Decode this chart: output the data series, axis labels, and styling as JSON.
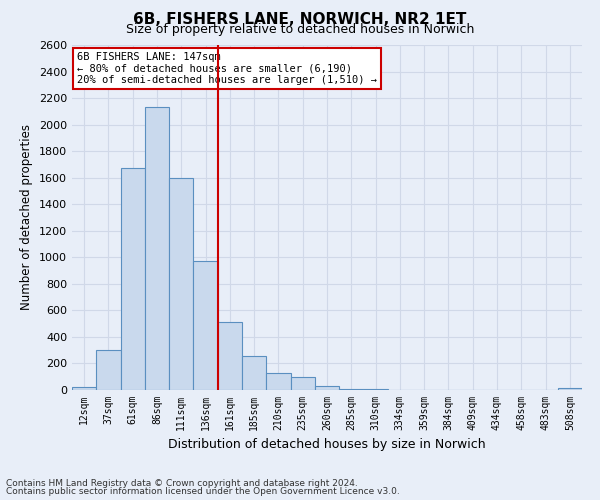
{
  "title": "6B, FISHERS LANE, NORWICH, NR2 1ET",
  "subtitle": "Size of property relative to detached houses in Norwich",
  "xlabel": "Distribution of detached houses by size in Norwich",
  "ylabel": "Number of detached properties",
  "bin_labels": [
    "12sqm",
    "37sqm",
    "61sqm",
    "86sqm",
    "111sqm",
    "136sqm",
    "161sqm",
    "185sqm",
    "210sqm",
    "235sqm",
    "260sqm",
    "285sqm",
    "310sqm",
    "334sqm",
    "359sqm",
    "384sqm",
    "409sqm",
    "434sqm",
    "458sqm",
    "483sqm",
    "508sqm"
  ],
  "bar_heights": [
    20,
    300,
    1670,
    2130,
    1600,
    970,
    510,
    255,
    125,
    95,
    30,
    10,
    5,
    3,
    2,
    2,
    1,
    1,
    1,
    1,
    15
  ],
  "bar_color": "#c9d9ed",
  "bar_edge_color": "#5a8fc0",
  "vline_x": 5.5,
  "vline_color": "#cc0000",
  "annotation_title": "6B FISHERS LANE: 147sqm",
  "annotation_line1": "← 80% of detached houses are smaller (6,190)",
  "annotation_line2": "20% of semi-detached houses are larger (1,510) →",
  "annotation_box_color": "#ffffff",
  "annotation_box_edge_color": "#cc0000",
  "ylim": [
    0,
    2600
  ],
  "yticks": [
    0,
    200,
    400,
    600,
    800,
    1000,
    1200,
    1400,
    1600,
    1800,
    2000,
    2200,
    2400,
    2600
  ],
  "footnote1": "Contains HM Land Registry data © Crown copyright and database right 2024.",
  "footnote2": "Contains public sector information licensed under the Open Government Licence v3.0.",
  "grid_color": "#d0d8e8",
  "background_color": "#e8eef8"
}
